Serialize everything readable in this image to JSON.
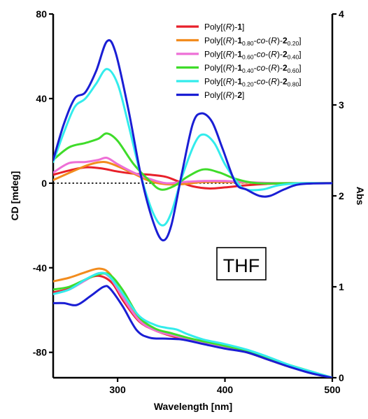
{
  "chart_data": {
    "type": "line",
    "xlabel": "Wavelength [nm]",
    "ylabel": "CD [mdeg]",
    "y2label": "Abs",
    "xlim": [
      240,
      500
    ],
    "ylim": [
      -92,
      80
    ],
    "y2lim": [
      0,
      4
    ],
    "x_ticks": [
      300,
      400,
      500
    ],
    "y_ticks": [
      -80,
      -40,
      0,
      40,
      80
    ],
    "y2_ticks": [
      0,
      1,
      2,
      3,
      4
    ],
    "grid": false,
    "legend_position": "top-right",
    "annotation": "THF",
    "zero_line": {
      "axis": "left",
      "value": 0,
      "style": "dotted"
    },
    "series": [
      {
        "name": "Poly[(R)-1]",
        "legend": [
          {
            "t": "Poly[("
          },
          {
            "t": "R",
            "i": true
          },
          {
            "t": ")-"
          },
          {
            "t": "1",
            "b": true
          },
          {
            "t": "]"
          }
        ],
        "color": "#e8202a",
        "cd": [
          [
            240,
            4
          ],
          [
            255,
            6
          ],
          [
            270,
            7.5
          ],
          [
            285,
            7
          ],
          [
            300,
            5.5
          ],
          [
            315,
            4.5
          ],
          [
            330,
            4
          ],
          [
            345,
            3
          ],
          [
            358,
            0.5
          ],
          [
            370,
            -1.5
          ],
          [
            385,
            -2.5
          ],
          [
            400,
            -2
          ],
          [
            420,
            -1
          ],
          [
            440,
            -0.3
          ],
          [
            460,
            0
          ],
          [
            500,
            0
          ]
        ],
        "abs": [
          [
            240,
            0.94
          ],
          [
            255,
            0.98
          ],
          [
            270,
            1.08
          ],
          [
            283,
            1.12
          ],
          [
            295,
            1.04
          ],
          [
            305,
            0.85
          ],
          [
            320,
            0.62
          ],
          [
            335,
            0.52
          ],
          [
            350,
            0.46
          ],
          [
            365,
            0.42
          ],
          [
            380,
            0.38
          ],
          [
            400,
            0.33
          ],
          [
            420,
            0.28
          ],
          [
            440,
            0.2
          ],
          [
            460,
            0.12
          ],
          [
            480,
            0.06
          ],
          [
            500,
            0
          ]
        ]
      },
      {
        "name": "Poly[(R)-1_0.80-co-(R)-2_0.20]",
        "legend": [
          {
            "t": "Poly[("
          },
          {
            "t": "R",
            "i": true
          },
          {
            "t": ")-"
          },
          {
            "t": "1",
            "b": true
          },
          {
            "t": "0.80",
            "s": true
          },
          {
            "t": "-"
          },
          {
            "t": "co",
            "i": true
          },
          {
            "t": "-("
          },
          {
            "t": "R",
            "i": true
          },
          {
            "t": ")-"
          },
          {
            "t": "2",
            "b": true
          },
          {
            "t": "0.20",
            "s": true
          },
          {
            "t": "]"
          }
        ],
        "color": "#f28c1e",
        "cd": [
          [
            240,
            1.5
          ],
          [
            260,
            6
          ],
          [
            275,
            9
          ],
          [
            288,
            10
          ],
          [
            300,
            8
          ],
          [
            315,
            4.5
          ],
          [
            330,
            1
          ],
          [
            345,
            -0.5
          ],
          [
            360,
            -0.5
          ],
          [
            380,
            0.5
          ],
          [
            400,
            0.5
          ],
          [
            420,
            0.3
          ],
          [
            450,
            0
          ],
          [
            500,
            0
          ]
        ],
        "abs": [
          [
            240,
            1.06
          ],
          [
            255,
            1.1
          ],
          [
            270,
            1.16
          ],
          [
            283,
            1.2
          ],
          [
            293,
            1.14
          ],
          [
            305,
            0.9
          ],
          [
            320,
            0.64
          ],
          [
            335,
            0.52
          ],
          [
            350,
            0.47
          ],
          [
            365,
            0.43
          ],
          [
            380,
            0.39
          ],
          [
            400,
            0.34
          ],
          [
            420,
            0.29
          ],
          [
            440,
            0.21
          ],
          [
            460,
            0.13
          ],
          [
            480,
            0.06
          ],
          [
            500,
            0
          ]
        ]
      },
      {
        "name": "Poly[(R)-1_0.60-co-(R)-2_0.40]",
        "legend": [
          {
            "t": "Poly[("
          },
          {
            "t": "R",
            "i": true
          },
          {
            "t": ")-"
          },
          {
            "t": "1",
            "b": true
          },
          {
            "t": "0.60",
            "s": true
          },
          {
            "t": "-"
          },
          {
            "t": "co",
            "i": true
          },
          {
            "t": "-("
          },
          {
            "t": "R",
            "i": true
          },
          {
            "t": ")-"
          },
          {
            "t": "2",
            "b": true
          },
          {
            "t": "0.40",
            "s": true
          },
          {
            "t": "]"
          }
        ],
        "color": "#ee6fd6",
        "cd": [
          [
            240,
            5
          ],
          [
            255,
            9.5
          ],
          [
            270,
            10
          ],
          [
            282,
            11
          ],
          [
            290,
            12
          ],
          [
            300,
            9
          ],
          [
            315,
            5
          ],
          [
            330,
            2
          ],
          [
            345,
            0
          ],
          [
            360,
            0.5
          ],
          [
            380,
            1
          ],
          [
            400,
            1
          ],
          [
            420,
            0.5
          ],
          [
            450,
            0
          ],
          [
            500,
            0
          ]
        ],
        "abs": [
          [
            240,
            0.92
          ],
          [
            255,
            0.97
          ],
          [
            270,
            1.07
          ],
          [
            283,
            1.15
          ],
          [
            293,
            1.1
          ],
          [
            305,
            0.88
          ],
          [
            320,
            0.63
          ],
          [
            335,
            0.52
          ],
          [
            350,
            0.47
          ],
          [
            365,
            0.43
          ],
          [
            380,
            0.39
          ],
          [
            400,
            0.34
          ],
          [
            420,
            0.29
          ],
          [
            440,
            0.21
          ],
          [
            460,
            0.13
          ],
          [
            480,
            0.06
          ],
          [
            500,
            0
          ]
        ]
      },
      {
        "name": "Poly[(R)-1_0.40-co-(R)-2_0.60]",
        "legend": [
          {
            "t": "Poly[("
          },
          {
            "t": "R",
            "i": true
          },
          {
            "t": ")-"
          },
          {
            "t": "1",
            "b": true
          },
          {
            "t": "0.40",
            "s": true
          },
          {
            "t": "-"
          },
          {
            "t": "co",
            "i": true
          },
          {
            "t": "-("
          },
          {
            "t": "R",
            "i": true
          },
          {
            "t": ")-"
          },
          {
            "t": "2",
            "b": true
          },
          {
            "t": "0.60",
            "s": true
          },
          {
            "t": "]"
          }
        ],
        "color": "#3fdc2a",
        "cd": [
          [
            240,
            11
          ],
          [
            255,
            17
          ],
          [
            270,
            19
          ],
          [
            282,
            21
          ],
          [
            290,
            23.5
          ],
          [
            300,
            20
          ],
          [
            315,
            9
          ],
          [
            330,
            1
          ],
          [
            340,
            -3
          ],
          [
            352,
            -1.5
          ],
          [
            365,
            3
          ],
          [
            380,
            6.5
          ],
          [
            395,
            5
          ],
          [
            410,
            2
          ],
          [
            430,
            0
          ],
          [
            460,
            0
          ],
          [
            500,
            0
          ]
        ],
        "abs": [
          [
            240,
            0.97
          ],
          [
            255,
            1.0
          ],
          [
            270,
            1.08
          ],
          [
            283,
            1.14
          ],
          [
            293,
            1.13
          ],
          [
            305,
            0.96
          ],
          [
            320,
            0.67
          ],
          [
            335,
            0.54
          ],
          [
            350,
            0.49
          ],
          [
            365,
            0.44
          ],
          [
            380,
            0.4
          ],
          [
            400,
            0.35
          ],
          [
            420,
            0.3
          ],
          [
            440,
            0.22
          ],
          [
            460,
            0.14
          ],
          [
            480,
            0.07
          ],
          [
            500,
            0
          ]
        ]
      },
      {
        "name": "Poly[(R)-1_0.20-co-(R)-2_0.80]",
        "legend": [
          {
            "t": "Poly[("
          },
          {
            "t": "R",
            "i": true
          },
          {
            "t": ")-"
          },
          {
            "t": "1",
            "b": true
          },
          {
            "t": "0.20",
            "s": true
          },
          {
            "t": "-"
          },
          {
            "t": "co",
            "i": true
          },
          {
            "t": "-("
          },
          {
            "t": "R",
            "i": true
          },
          {
            "t": ")-"
          },
          {
            "t": "2",
            "b": true
          },
          {
            "t": "0.80",
            "s": true
          },
          {
            "t": "]"
          }
        ],
        "color": "#33ecec",
        "cd": [
          [
            240,
            10
          ],
          [
            250,
            24
          ],
          [
            260,
            36
          ],
          [
            270,
            40
          ],
          [
            280,
            47
          ],
          [
            290,
            54
          ],
          [
            300,
            47
          ],
          [
            310,
            28
          ],
          [
            322,
            3
          ],
          [
            333,
            -14
          ],
          [
            342,
            -20
          ],
          [
            350,
            -14
          ],
          [
            360,
            3
          ],
          [
            372,
            19
          ],
          [
            380,
            23
          ],
          [
            390,
            19
          ],
          [
            400,
            9
          ],
          [
            412,
            0
          ],
          [
            420,
            -3
          ],
          [
            435,
            -3
          ],
          [
            450,
            -1
          ],
          [
            470,
            0
          ],
          [
            500,
            0
          ]
        ],
        "abs": [
          [
            240,
            0.92
          ],
          [
            255,
            0.97
          ],
          [
            270,
            1.08
          ],
          [
            283,
            1.15
          ],
          [
            292,
            1.12
          ],
          [
            305,
            0.92
          ],
          [
            320,
            0.68
          ],
          [
            335,
            0.58
          ],
          [
            345,
            0.55
          ],
          [
            355,
            0.53
          ],
          [
            365,
            0.48
          ],
          [
            380,
            0.42
          ],
          [
            400,
            0.37
          ],
          [
            420,
            0.31
          ],
          [
            440,
            0.23
          ],
          [
            460,
            0.14
          ],
          [
            480,
            0.07
          ],
          [
            500,
            0
          ]
        ]
      },
      {
        "name": "Poly[(R)-2]",
        "legend": [
          {
            "t": "Poly[("
          },
          {
            "t": "R",
            "i": true
          },
          {
            "t": ")-"
          },
          {
            "t": "2",
            "b": true
          },
          {
            "t": "]"
          }
        ],
        "color": "#1a1ed4",
        "cd": [
          [
            240,
            11
          ],
          [
            250,
            28
          ],
          [
            260,
            40
          ],
          [
            270,
            43
          ],
          [
            280,
            53
          ],
          [
            290,
            67
          ],
          [
            298,
            62
          ],
          [
            310,
            35
          ],
          [
            322,
            3
          ],
          [
            333,
            -18
          ],
          [
            342,
            -27
          ],
          [
            350,
            -20
          ],
          [
            360,
            5
          ],
          [
            370,
            28
          ],
          [
            378,
            33
          ],
          [
            388,
            29
          ],
          [
            398,
            16
          ],
          [
            410,
            0
          ],
          [
            420,
            -3
          ],
          [
            432,
            -6
          ],
          [
            442,
            -6
          ],
          [
            455,
            -3
          ],
          [
            470,
            -0.5
          ],
          [
            500,
            0
          ]
        ],
        "abs": [
          [
            240,
            0.82
          ],
          [
            250,
            0.82
          ],
          [
            262,
            0.8
          ],
          [
            275,
            0.9
          ],
          [
            287,
            1.0
          ],
          [
            293,
            0.98
          ],
          [
            305,
            0.78
          ],
          [
            318,
            0.52
          ],
          [
            330,
            0.44
          ],
          [
            345,
            0.43
          ],
          [
            360,
            0.42
          ],
          [
            380,
            0.37
          ],
          [
            400,
            0.32
          ],
          [
            420,
            0.28
          ],
          [
            440,
            0.2
          ],
          [
            460,
            0.12
          ],
          [
            480,
            0.05
          ],
          [
            500,
            0
          ]
        ]
      }
    ]
  }
}
